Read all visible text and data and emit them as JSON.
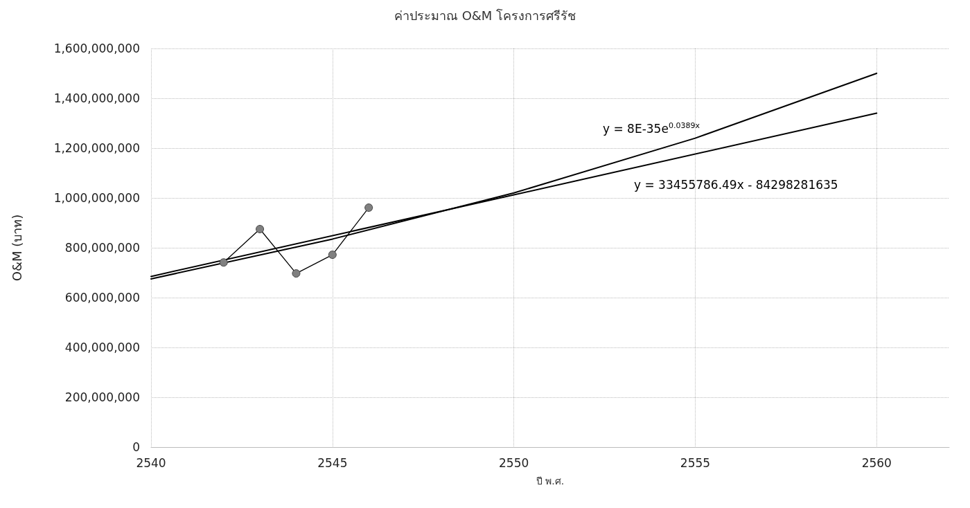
{
  "chart_data": {
    "type": "line",
    "title": "ค่าประมาณ O&M โครงการศรีรัช",
    "xlabel": "ปี พ.ศ.",
    "ylabel": "O&M (บาท)",
    "xlim": [
      2540,
      2562
    ],
    "xticks": [
      2540,
      2545,
      2550,
      2555,
      2560
    ],
    "ylim": [
      0,
      1600000000
    ],
    "yticks": [
      0,
      {
        "value": 200000000,
        "label": "200,000,000"
      },
      {
        "value": 400000000,
        "label": "400,000,000"
      },
      {
        "value": 600000000,
        "label": "600,000,000"
      },
      {
        "value": 800000000,
        "label": "800,000,000"
      },
      {
        "value": 1000000000,
        "label": "1,000,000,000"
      },
      {
        "value": 1200000000,
        "label": "1,200,000,000"
      },
      {
        "value": 1400000000,
        "label": "1,400,000,000"
      },
      {
        "value": 1600000000,
        "label": "1,600,000,000"
      }
    ],
    "grid": true,
    "legend": false,
    "series": [
      {
        "color": "#000000",
        "marker": "none",
        "x": [
          2540,
          2545,
          2550,
          2555,
          2560
        ],
        "values": [
          675000000,
          835000000,
          1020000000,
          1240000000,
          1500000000
        ]
      },
      {
        "color": "#000000",
        "marker": "none",
        "x": [
          2540,
          2560
        ],
        "values": [
          685000000,
          1340000000
        ]
      },
      {
        "color": "#808080",
        "marker": "circle",
        "x": [
          2542,
          2543,
          2544,
          2545,
          2546
        ],
        "values": [
          741000000,
          875000000,
          697000000,
          772000000,
          961000000
        ]
      }
    ],
    "annotations": [
      "y = 8E-35e$^{0.0389x}$",
      "y = 33455786.49x - 84298281635"
    ]
  }
}
